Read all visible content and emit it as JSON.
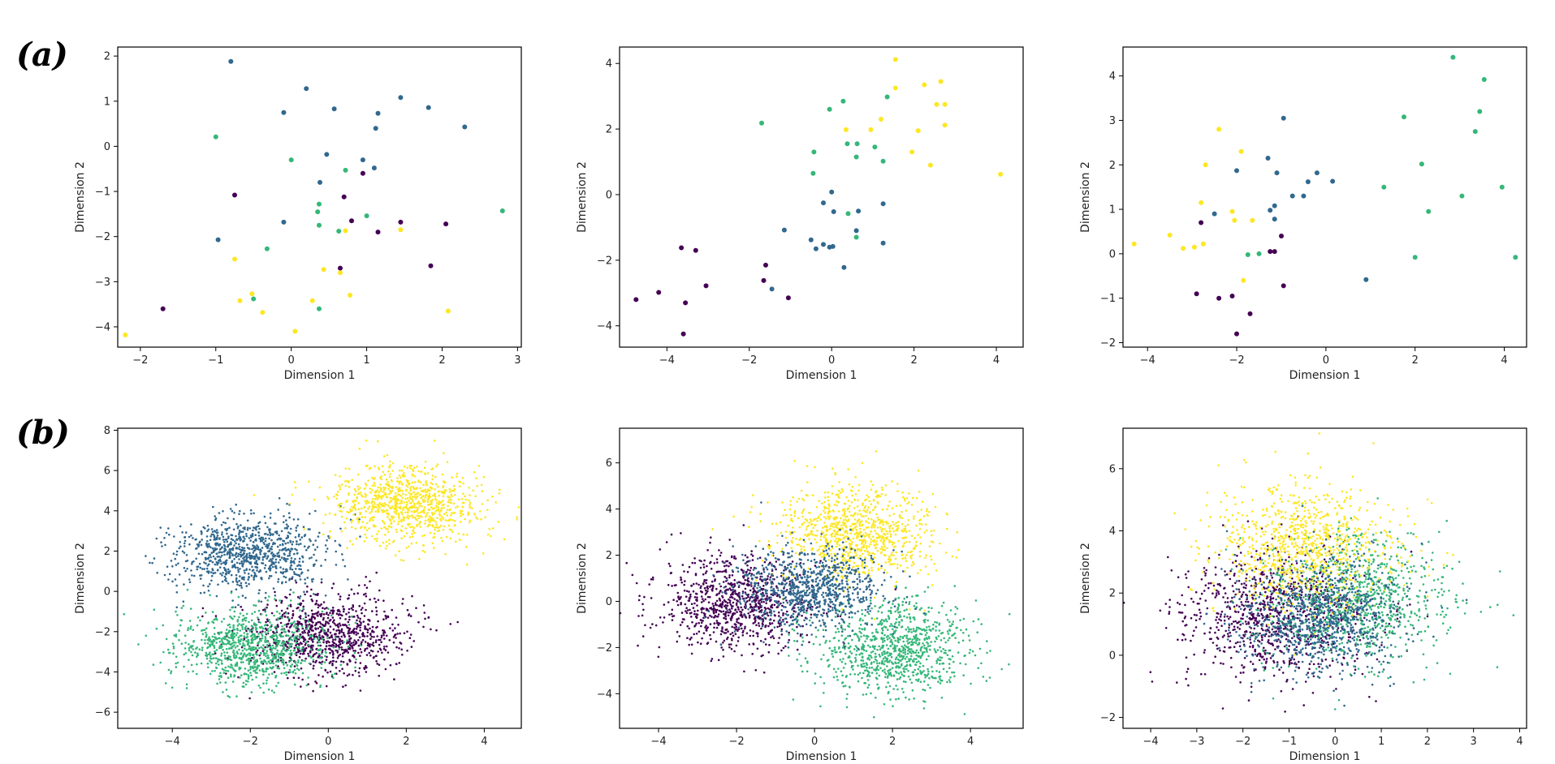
{
  "figure": {
    "row_labels": [
      "(a)",
      "(b)"
    ],
    "colors": {
      "class0": "#440154",
      "class1": "#31688e",
      "class2": "#35b779",
      "class3": "#fde725",
      "axes": "#000000"
    }
  },
  "chart_data": [
    {
      "type": "scatter",
      "xlabel": "Dimension 1",
      "ylabel": "Dimension 2",
      "xlim": [
        -2.3,
        3.05
      ],
      "ylim": [
        -4.45,
        2.2
      ],
      "xticks": [
        -2,
        -1,
        0,
        1,
        2,
        3
      ],
      "yticks": [
        -4,
        -3,
        -2,
        -1,
        0,
        1,
        2
      ],
      "grid": false,
      "series": [
        {
          "color": "#440154",
          "points": [
            [
              -1.7,
              -3.6
            ],
            [
              -0.75,
              -1.08
            ],
            [
              0.95,
              -0.6
            ],
            [
              0.7,
              -1.12
            ],
            [
              0.8,
              -1.65
            ],
            [
              1.15,
              -1.9
            ],
            [
              1.45,
              -1.68
            ],
            [
              2.05,
              -1.72
            ],
            [
              1.85,
              -2.65
            ],
            [
              0.65,
              -2.7
            ]
          ]
        },
        {
          "color": "#31688e",
          "points": [
            [
              -0.8,
              1.88
            ],
            [
              0.2,
              1.28
            ],
            [
              -0.1,
              0.75
            ],
            [
              0.57,
              0.83
            ],
            [
              1.45,
              1.08
            ],
            [
              1.15,
              0.73
            ],
            [
              1.12,
              0.4
            ],
            [
              1.82,
              0.86
            ],
            [
              2.3,
              0.43
            ],
            [
              0.47,
              -0.18
            ],
            [
              0.38,
              -0.8
            ],
            [
              0.95,
              -0.3
            ],
            [
              1.1,
              -0.48
            ],
            [
              -0.1,
              -1.68
            ],
            [
              -0.97,
              -2.07
            ]
          ]
        },
        {
          "color": "#35b779",
          "points": [
            [
              -1.0,
              0.21
            ],
            [
              0.0,
              -0.3
            ],
            [
              0.72,
              -0.53
            ],
            [
              0.37,
              -1.28
            ],
            [
              0.35,
              -1.45
            ],
            [
              0.37,
              -1.75
            ],
            [
              1.0,
              -1.54
            ],
            [
              0.63,
              -1.88
            ],
            [
              -0.32,
              -2.27
            ],
            [
              -0.5,
              -3.38
            ],
            [
              0.37,
              -3.6
            ],
            [
              2.8,
              -1.43
            ]
          ]
        },
        {
          "color": "#fde725",
          "points": [
            [
              -2.2,
              -4.18
            ],
            [
              -0.75,
              -2.5
            ],
            [
              -0.68,
              -3.42
            ],
            [
              -0.52,
              -3.27
            ],
            [
              -0.38,
              -3.68
            ],
            [
              0.05,
              -4.1
            ],
            [
              0.28,
              -3.42
            ],
            [
              0.43,
              -2.73
            ],
            [
              0.65,
              -2.8
            ],
            [
              0.78,
              -3.3
            ],
            [
              0.72,
              -1.87
            ],
            [
              1.45,
              -1.85
            ],
            [
              2.08,
              -3.65
            ]
          ]
        }
      ]
    },
    {
      "type": "scatter",
      "xlabel": "Dimension 1",
      "ylabel": "Dimension 2",
      "xlim": [
        -5.15,
        4.65
      ],
      "ylim": [
        -4.65,
        4.5
      ],
      "xticks": [
        -4,
        -2,
        0,
        2,
        4
      ],
      "yticks": [
        -4,
        -2,
        0,
        2,
        4
      ],
      "grid": false,
      "series": [
        {
          "color": "#440154",
          "points": [
            [
              -4.75,
              -3.2
            ],
            [
              -4.2,
              -2.98
            ],
            [
              -3.65,
              -1.62
            ],
            [
              -3.3,
              -1.7
            ],
            [
              -3.55,
              -3.3
            ],
            [
              -3.6,
              -4.25
            ],
            [
              -3.05,
              -2.78
            ],
            [
              -1.6,
              -2.15
            ],
            [
              -1.65,
              -2.62
            ],
            [
              -1.05,
              -3.15
            ]
          ]
        },
        {
          "color": "#31688e",
          "points": [
            [
              -1.15,
              -1.08
            ],
            [
              -0.5,
              -1.38
            ],
            [
              -0.38,
              -1.65
            ],
            [
              -0.2,
              -1.52
            ],
            [
              -0.05,
              -1.6
            ],
            [
              0.03,
              -1.58
            ],
            [
              0.0,
              0.08
            ],
            [
              -0.2,
              -0.25
            ],
            [
              0.05,
              -0.52
            ],
            [
              0.65,
              -0.5
            ],
            [
              1.25,
              -0.28
            ],
            [
              0.6,
              -1.1
            ],
            [
              1.25,
              -1.48
            ],
            [
              0.3,
              -2.22
            ],
            [
              -1.45,
              -2.88
            ]
          ]
        },
        {
          "color": "#35b779",
          "points": [
            [
              -1.7,
              2.18
            ],
            [
              -0.05,
              2.6
            ],
            [
              0.28,
              2.85
            ],
            [
              1.35,
              2.98
            ],
            [
              0.38,
              1.55
            ],
            [
              0.62,
              1.55
            ],
            [
              0.6,
              1.15
            ],
            [
              1.05,
              1.45
            ],
            [
              1.25,
              1.02
            ],
            [
              -0.45,
              0.65
            ],
            [
              -0.43,
              1.3
            ],
            [
              0.4,
              -0.58
            ],
            [
              0.6,
              -1.3
            ]
          ]
        },
        {
          "color": "#fde725",
          "points": [
            [
              1.55,
              4.12
            ],
            [
              1.55,
              3.25
            ],
            [
              2.25,
              3.35
            ],
            [
              2.65,
              3.45
            ],
            [
              2.55,
              2.75
            ],
            [
              2.75,
              2.75
            ],
            [
              2.75,
              2.12
            ],
            [
              1.2,
              2.3
            ],
            [
              2.1,
              1.95
            ],
            [
              0.35,
              1.98
            ],
            [
              0.95,
              1.98
            ],
            [
              1.95,
              1.3
            ],
            [
              2.4,
              0.9
            ],
            [
              4.1,
              0.62
            ]
          ]
        }
      ]
    },
    {
      "type": "scatter",
      "xlabel": "Dimension 1",
      "ylabel": "Dimension 2",
      "xlim": [
        -4.55,
        4.5
      ],
      "ylim": [
        -2.1,
        4.65
      ],
      "xticks": [
        -4,
        -2,
        0,
        2,
        4
      ],
      "yticks": [
        -2,
        -1,
        0,
        1,
        2,
        3,
        4
      ],
      "grid": false,
      "series": [
        {
          "color": "#440154",
          "points": [
            [
              -2.8,
              0.7
            ],
            [
              -2.9,
              -0.9
            ],
            [
              -2.4,
              -1.0
            ],
            [
              -2.1,
              -0.95
            ],
            [
              -2.0,
              -1.8
            ],
            [
              -1.7,
              -1.35
            ],
            [
              -1.25,
              0.05
            ],
            [
              -1.15,
              0.05
            ],
            [
              -1.0,
              0.4
            ],
            [
              -0.95,
              -0.72
            ]
          ]
        },
        {
          "color": "#31688e",
          "points": [
            [
              -2.0,
              1.87
            ],
            [
              -2.5,
              0.9
            ],
            [
              -1.3,
              2.15
            ],
            [
              -1.1,
              1.82
            ],
            [
              -1.25,
              0.98
            ],
            [
              -1.15,
              1.08
            ],
            [
              -1.15,
              0.78
            ],
            [
              -0.95,
              3.05
            ],
            [
              -0.75,
              1.3
            ],
            [
              -0.5,
              1.3
            ],
            [
              -0.4,
              1.62
            ],
            [
              -0.2,
              1.82
            ],
            [
              0.15,
              1.63
            ],
            [
              0.9,
              -0.58
            ]
          ]
        },
        {
          "color": "#35b779",
          "points": [
            [
              -1.75,
              -0.02
            ],
            [
              -1.5,
              0.0
            ],
            [
              1.3,
              1.5
            ],
            [
              1.75,
              3.08
            ],
            [
              2.0,
              -0.08
            ],
            [
              2.15,
              2.02
            ],
            [
              2.3,
              0.95
            ],
            [
              2.85,
              4.42
            ],
            [
              3.05,
              1.3
            ],
            [
              3.35,
              2.75
            ],
            [
              3.45,
              3.2
            ],
            [
              3.55,
              3.92
            ],
            [
              3.95,
              1.5
            ],
            [
              4.25,
              -0.08
            ]
          ]
        },
        {
          "color": "#fde725",
          "points": [
            [
              -4.3,
              0.22
            ],
            [
              -3.5,
              0.42
            ],
            [
              -3.2,
              0.12
            ],
            [
              -2.95,
              0.15
            ],
            [
              -2.75,
              0.22
            ],
            [
              -2.8,
              1.15
            ],
            [
              -2.7,
              2.0
            ],
            [
              -2.4,
              2.8
            ],
            [
              -2.1,
              0.95
            ],
            [
              -2.05,
              0.75
            ],
            [
              -1.9,
              2.3
            ],
            [
              -1.65,
              0.75
            ],
            [
              -1.85,
              -0.6
            ]
          ]
        }
      ]
    },
    {
      "type": "scatter",
      "xlabel": "Dimension 1",
      "ylabel": "Dimension 2",
      "xlim": [
        -5.4,
        4.95
      ],
      "ylim": [
        -6.8,
        8.1
      ],
      "xticks": [
        -4,
        -2,
        0,
        2,
        4
      ],
      "yticks": [
        -6,
        -4,
        -2,
        0,
        2,
        4,
        6,
        8
      ],
      "grid": false,
      "clusters": [
        {
          "color": "#440154",
          "center": [
            0.0,
            -2.1
          ],
          "spread": [
            1.0,
            1.0
          ],
          "count": 900
        },
        {
          "color": "#31688e",
          "center": [
            -2.0,
            1.9
          ],
          "spread": [
            1.0,
            0.95
          ],
          "count": 900
        },
        {
          "color": "#35b779",
          "center": [
            -2.0,
            -2.8
          ],
          "spread": [
            1.0,
            0.95
          ],
          "count": 900
        },
        {
          "color": "#fde725",
          "center": [
            2.0,
            4.3
          ],
          "spread": [
            1.0,
            0.95
          ],
          "count": 900
        }
      ]
    },
    {
      "type": "scatter",
      "xlabel": "Dimension 1",
      "ylabel": "Dimension 2",
      "xlim": [
        -5.0,
        5.35
      ],
      "ylim": [
        -5.5,
        7.5
      ],
      "xticks": [
        -4,
        -2,
        0,
        2,
        4
      ],
      "yticks": [
        -4,
        -2,
        0,
        2,
        4,
        6
      ],
      "grid": false,
      "clusters": [
        {
          "color": "#440154",
          "center": [
            -2.0,
            -0.1
          ],
          "spread": [
            1.0,
            1.0
          ],
          "count": 900
        },
        {
          "color": "#35b779",
          "center": [
            2.0,
            -2.0
          ],
          "spread": [
            1.0,
            1.0
          ],
          "count": 900
        },
        {
          "color": "#fde725",
          "center": [
            1.0,
            3.0
          ],
          "spread": [
            1.0,
            1.0
          ],
          "count": 900
        },
        {
          "color": "#31688e",
          "center": [
            -0.1,
            0.6
          ],
          "spread": [
            0.9,
            0.9
          ],
          "count": 900
        }
      ]
    },
    {
      "type": "scatter",
      "xlabel": "Dimension 1",
      "ylabel": "Dimension 2",
      "xlim": [
        -4.6,
        4.15
      ],
      "ylim": [
        -2.35,
        7.3
      ],
      "xticks": [
        -4,
        -3,
        -2,
        -1,
        0,
        1,
        2,
        3,
        4
      ],
      "yticks": [
        -2,
        0,
        2,
        4,
        6
      ],
      "grid": false,
      "clusters": [
        {
          "color": "#440154",
          "center": [
            -1.3,
            1.3
          ],
          "spread": [
            1.0,
            1.0
          ],
          "count": 900
        },
        {
          "color": "#35b779",
          "center": [
            0.5,
            1.8
          ],
          "spread": [
            1.0,
            1.0
          ],
          "count": 900
        },
        {
          "color": "#fde725",
          "center": [
            -0.7,
            3.5
          ],
          "spread": [
            1.0,
            1.0
          ],
          "count": 900
        },
        {
          "color": "#31688e",
          "center": [
            -0.3,
            1.2
          ],
          "spread": [
            0.9,
            0.9
          ],
          "count": 900
        }
      ]
    }
  ]
}
